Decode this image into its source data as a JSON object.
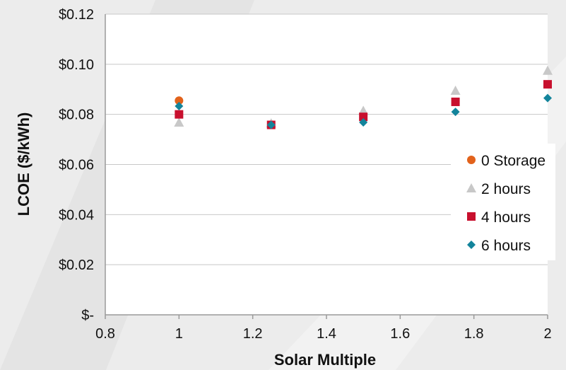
{
  "chart_data": {
    "type": "scatter",
    "xlabel": "Solar Multiple",
    "ylabel": "LCOE ($/kWh)",
    "xlim": [
      0.8,
      2.0
    ],
    "ylim": [
      0,
      0.12
    ],
    "x_ticks": [
      "0.8",
      "1",
      "1.2",
      "1.4",
      "1.6",
      "1.8",
      "2"
    ],
    "x_tick_values": [
      0.8,
      1.0,
      1.2,
      1.4,
      1.6,
      1.8,
      2.0
    ],
    "y_ticks": [
      "$-",
      "$0.02",
      "$0.04",
      "$0.06",
      "$0.08",
      "$0.10",
      "$0.12"
    ],
    "y_tick_values": [
      0,
      0.02,
      0.04,
      0.06,
      0.08,
      0.1,
      0.12
    ],
    "grid": "horizontal",
    "legend_position": "right",
    "series": [
      {
        "name": "0 Storage",
        "marker": "circle",
        "color": "#e2621b",
        "x": [
          1.0
        ],
        "y": [
          0.0855
        ]
      },
      {
        "name": "2 hours",
        "marker": "triangle",
        "color": "#c8c8c8",
        "x": [
          1.0,
          1.25,
          1.5,
          1.75,
          2.0
        ],
        "y": [
          0.0768,
          0.0765,
          0.0815,
          0.0895,
          0.0975
        ]
      },
      {
        "name": "4 hours",
        "marker": "square",
        "color": "#c8102e",
        "x": [
          1.0,
          1.25,
          1.5,
          1.75,
          2.0
        ],
        "y": [
          0.08,
          0.0758,
          0.079,
          0.085,
          0.092
        ]
      },
      {
        "name": "6 hours",
        "marker": "diamond",
        "color": "#13849b",
        "x": [
          1.0,
          1.25,
          1.5,
          1.75,
          2.0
        ],
        "y": [
          0.0833,
          0.0758,
          0.0768,
          0.081,
          0.0865
        ]
      }
    ]
  }
}
